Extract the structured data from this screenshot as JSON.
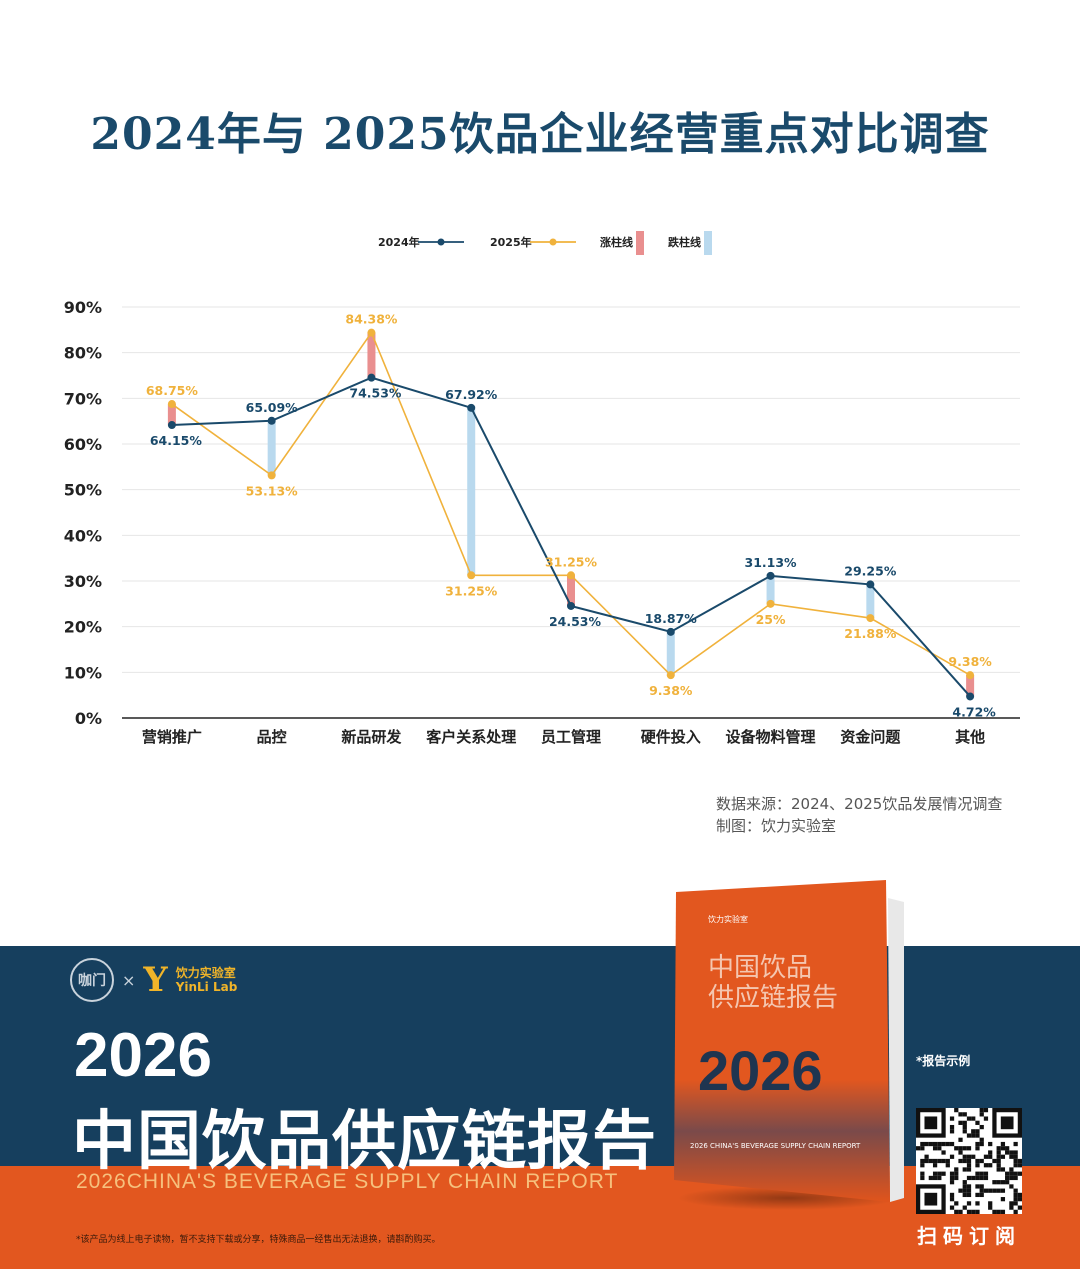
{
  "page_title": "2024年与 2025饮品企业经营重点对比调查",
  "chart_data": {
    "type": "line",
    "title": "2024年与 2025饮品企业经营重点对比调查",
    "categories": [
      "营销推广",
      "品控",
      "新品研发",
      "客户关系处理",
      "员工管理",
      "硬件投入",
      "设备物料管理",
      "资金问题",
      "其他"
    ],
    "series": [
      {
        "name": "2024年",
        "values": [
          64.15,
          65.09,
          74.53,
          67.92,
          24.53,
          18.87,
          31.13,
          29.25,
          4.72
        ],
        "labels": [
          "64.15%",
          "65.09%",
          "74.53%",
          "67.92%",
          "24.53%",
          "18.87%",
          "31.13%",
          "29.25%",
          "4.72%"
        ],
        "color": "#1a4a6b"
      },
      {
        "name": "2025年",
        "values": [
          68.75,
          53.13,
          84.38,
          31.25,
          31.25,
          9.38,
          25,
          21.88,
          9.38
        ],
        "labels": [
          "68.75%",
          "53.13%",
          "84.38%",
          "31.25%",
          "31.25%",
          "9.38%",
          "25%",
          "21.88%",
          "9.38%"
        ],
        "color": "#f0b23c"
      }
    ],
    "legend": [
      {
        "label": "2024年",
        "kind": "line",
        "color": "#1a4a6b"
      },
      {
        "label": "2025年",
        "kind": "line",
        "color": "#f0b23c"
      },
      {
        "label": "涨柱线",
        "kind": "bar",
        "color": "#e98f8f"
      },
      {
        "label": "跌柱线",
        "kind": "bar",
        "color": "#b9d9ee"
      }
    ],
    "legend_position": "top-center",
    "up_bar_color": "#e98f8f",
    "down_bar_color": "#b9d9ee",
    "ylim": [
      0,
      90
    ],
    "yticks": [
      "0%",
      "10%",
      "20%",
      "30%",
      "40%",
      "50%",
      "60%",
      "70%",
      "80%",
      "90%"
    ],
    "grid": true
  },
  "source": {
    "line1": "数据来源：2024、2025饮品发展情况调查",
    "line2": "制图：饮力实验室"
  },
  "banner": {
    "logo_left": "咖门",
    "logo_x": "×",
    "logo_cn": "饮力实验室",
    "logo_en": "YinLi Lab",
    "year": "2026",
    "title": "中国饮品供应链报告",
    "subtitle_en": "2026CHINA'S BEVERAGE SUPPLY CHAIN REPORT",
    "disclaimer": "*该产品为线上电子读物，暂不支持下载或分享，特殊商品一经售出无法退换，请斟酌购买。",
    "sample_note": "*报告示例",
    "qr_label": "扫码订阅",
    "book_title_line1": "中国饮品",
    "book_title_line2": "供应链报告",
    "book_year": "2026",
    "book_en": "2026 CHINA'S BEVERAGE SUPPLY CHAIN REPORT",
    "book_logo": "饮力实验室"
  }
}
